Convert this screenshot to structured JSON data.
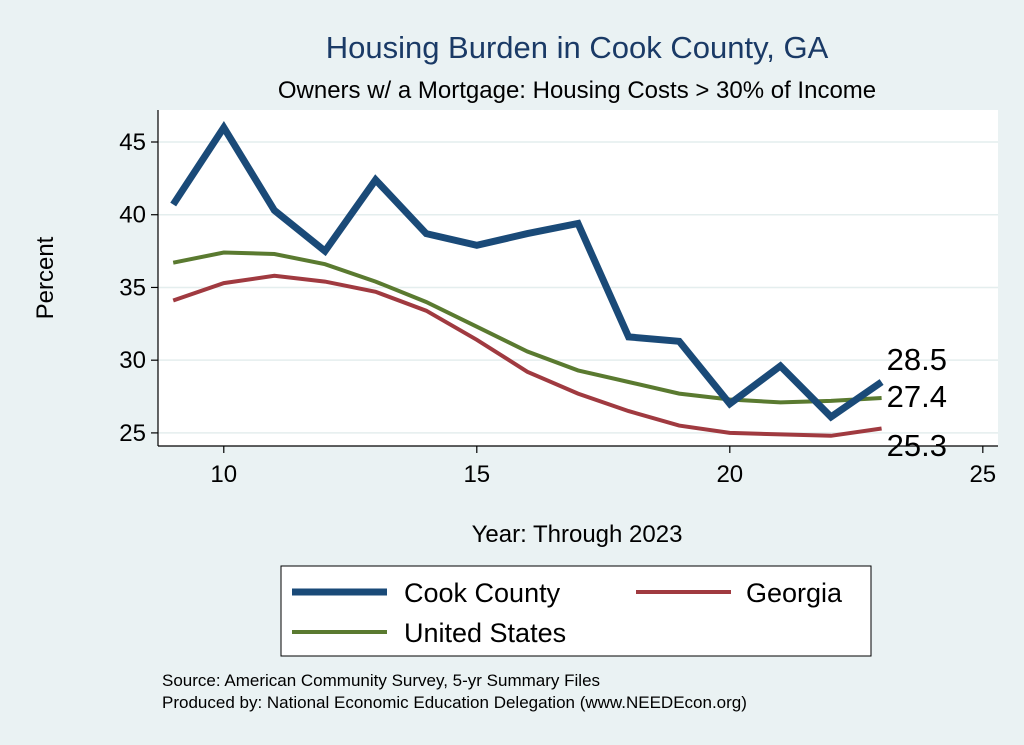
{
  "chart_data": {
    "type": "line",
    "title": "Housing Burden in Cook County, GA",
    "subtitle": "Owners w/ a Mortgage: Housing Costs > 30% of Income",
    "xlabel": "Year: Through 2023",
    "ylabel": "Percent",
    "xlim": [
      8.7,
      25.3
    ],
    "ylim": [
      24.1,
      47.2
    ],
    "xticks": [
      10,
      15,
      20,
      25
    ],
    "yticks": [
      25,
      30,
      35,
      40,
      45
    ],
    "x": [
      9,
      10,
      11,
      12,
      13,
      14,
      15,
      16,
      17,
      18,
      19,
      20,
      21,
      22,
      23
    ],
    "series": [
      {
        "name": "Cook County",
        "color": "#1a4a78",
        "values": [
          40.7,
          46.0,
          40.3,
          37.5,
          42.4,
          38.7,
          37.9,
          38.7,
          39.4,
          31.6,
          31.3,
          27.0,
          29.6,
          26.1,
          28.5
        ],
        "end_label": "28.5"
      },
      {
        "name": "Georgia",
        "color": "#a03a40",
        "values": [
          34.1,
          35.3,
          35.8,
          35.4,
          34.7,
          33.4,
          31.4,
          29.2,
          27.7,
          26.5,
          25.5,
          25.0,
          24.9,
          24.8,
          25.3
        ],
        "end_label": "25.3"
      },
      {
        "name": "United States",
        "color": "#5a7a30",
        "values": [
          36.7,
          37.4,
          37.3,
          36.6,
          35.4,
          34.0,
          32.3,
          30.6,
          29.3,
          28.5,
          27.7,
          27.3,
          27.1,
          27.2,
          27.4
        ],
        "end_label": "27.4"
      }
    ],
    "legend": {
      "position": "bottom",
      "entries": [
        "Cook County",
        "Georgia",
        "United States"
      ]
    },
    "grid": true
  },
  "source": {
    "line1": "Source: American Community Survey, 5-yr Summary Files",
    "line2": "Produced by: National Economic Education Delegation (www.NEEDEcon.org)"
  }
}
